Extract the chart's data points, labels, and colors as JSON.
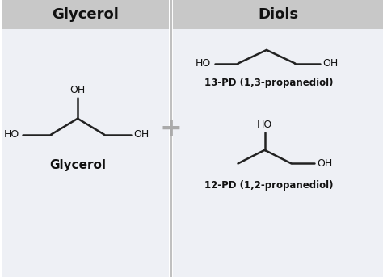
{
  "fig_width": 4.74,
  "fig_height": 3.43,
  "dpi": 100,
  "bg_color": "#ffffff",
  "left_panel_bg": "#eef0f5",
  "right_panel_bg": "#eef0f5",
  "header_bg": "#c8c8c8",
  "divider_color": "#c0c0c0",
  "text_color": "#111111",
  "bond_color": "#222222",
  "plus_color": "#aaaaaa",
  "header_left": "Glycerol",
  "header_right": "Diols",
  "label_glycerol": "Glycerol",
  "label_13pd": "13-PD (1,3-propanediol)",
  "label_12pd": "12-PD (1,2-propanediol)"
}
